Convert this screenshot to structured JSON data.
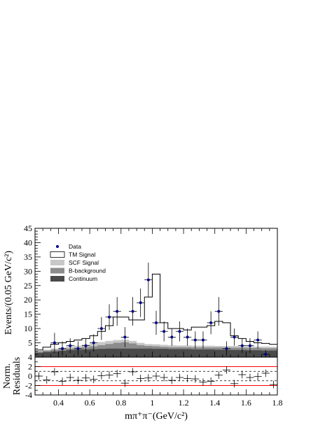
{
  "chart_data": [
    {
      "type": "histogram",
      "ylabel": "Events/(0.05 GeV/c²)",
      "xlim": [
        0.25,
        1.8
      ],
      "ylim": [
        0,
        45
      ],
      "y_ticks": [
        "5",
        "10",
        "15",
        "20",
        "25",
        "30",
        "35",
        "40",
        "45"
      ],
      "colors": {
        "data": "#00008b",
        "tm": "#000000",
        "scf": "#c8c8c8",
        "bkg": "#8c8c8c",
        "cont": "#4a4a4a"
      },
      "legend": {
        "placement": "top-left",
        "entries": [
          {
            "key": "data",
            "label": "Data"
          },
          {
            "key": "tm",
            "label": "TM Signal"
          },
          {
            "key": "scf",
            "label": "SCF Signal"
          },
          {
            "key": "bkg",
            "label": "B-background"
          },
          {
            "key": "cont",
            "label": "Continuum"
          }
        ]
      },
      "bin_edges": [
        0.25,
        0.3,
        0.35,
        0.4,
        0.45,
        0.5,
        0.55,
        0.6,
        0.65,
        0.7,
        0.75,
        0.8,
        0.85,
        0.9,
        0.95,
        1.0,
        1.05,
        1.1,
        1.15,
        1.2,
        1.25,
        1.3,
        1.35,
        1.4,
        1.45,
        1.5,
        1.55,
        1.6,
        1.65,
        1.7,
        1.75,
        1.8
      ],
      "series": [
        {
          "key": "cont",
          "name": "Continuum",
          "values": [
            1.5,
            1.8,
            2.0,
            2.2,
            2.5,
            2.6,
            2.7,
            2.8,
            2.9,
            3.0,
            3.0,
            3.0,
            3.0,
            3.0,
            3.0,
            2.9,
            2.9,
            2.8,
            2.8,
            2.8,
            2.7,
            2.7,
            2.7,
            2.6,
            2.6,
            2.5,
            2.5,
            2.4,
            2.4,
            2.3,
            2.3
          ]
        },
        {
          "key": "bkg",
          "name": "B-background",
          "values": [
            2.0,
            2.3,
            2.6,
            2.8,
            3.0,
            3.2,
            3.5,
            3.8,
            4.2,
            4.6,
            5.0,
            5.2,
            4.8,
            4.2,
            3.9,
            3.8,
            3.6,
            3.5,
            3.5,
            3.5,
            3.4,
            3.4,
            3.4,
            3.4,
            3.3,
            3.3,
            3.3,
            3.2,
            3.2,
            3.1,
            3.1
          ]
        },
        {
          "key": "scf",
          "name": "SCF Signal",
          "values": [
            2.2,
            2.6,
            3.0,
            3.3,
            3.7,
            4.0,
            4.4,
            4.8,
            5.3,
            5.7,
            6.0,
            6.1,
            5.7,
            5.0,
            4.6,
            4.5,
            4.3,
            4.2,
            4.1,
            4.1,
            4.0,
            4.0,
            4.0,
            3.9,
            3.9,
            3.9,
            3.8,
            3.8,
            3.7,
            3.7,
            3.6
          ]
        },
        {
          "key": "tm",
          "name": "TM Signal",
          "values": [
            2.5,
            3.5,
            4.5,
            5.0,
            5.5,
            6.0,
            6.5,
            7.5,
            9.0,
            11.0,
            14.0,
            14.0,
            13.0,
            13.0,
            21.0,
            29.0,
            12.0,
            10.0,
            10.0,
            9.5,
            10.5,
            10.5,
            11.0,
            12.5,
            12.0,
            7.5,
            6.5,
            5.5,
            5.0,
            4.8,
            4.5
          ]
        }
      ],
      "data_points": [
        {
          "x": 0.375,
          "y": 5,
          "err": 3.5
        },
        {
          "x": 0.425,
          "y": 3,
          "err": 2.5
        },
        {
          "x": 0.475,
          "y": 4,
          "err": 2.6
        },
        {
          "x": 0.525,
          "y": 3,
          "err": 2.5
        },
        {
          "x": 0.575,
          "y": 4,
          "err": 2.6
        },
        {
          "x": 0.625,
          "y": 5,
          "err": 3.0
        },
        {
          "x": 0.675,
          "y": 10,
          "err": 4.0
        },
        {
          "x": 0.725,
          "y": 14,
          "err": 4.5
        },
        {
          "x": 0.775,
          "y": 16,
          "err": 5.0
        },
        {
          "x": 0.825,
          "y": 7,
          "err": 3.5
        },
        {
          "x": 0.875,
          "y": 16,
          "err": 5.0
        },
        {
          "x": 0.925,
          "y": 19,
          "err": 5.0
        },
        {
          "x": 0.975,
          "y": 27,
          "err": 6.0
        },
        {
          "x": 1.025,
          "y": 12,
          "err": 4.2
        },
        {
          "x": 1.075,
          "y": 9,
          "err": 3.5
        },
        {
          "x": 1.125,
          "y": 7,
          "err": 3.0
        },
        {
          "x": 1.175,
          "y": 9,
          "err": 3.5
        },
        {
          "x": 1.225,
          "y": 7,
          "err": 3.0
        },
        {
          "x": 1.275,
          "y": 6,
          "err": 3.0
        },
        {
          "x": 1.325,
          "y": 6,
          "err": 3.0
        },
        {
          "x": 1.375,
          "y": 12,
          "err": 4.0
        },
        {
          "x": 1.425,
          "y": 16,
          "err": 5.0
        },
        {
          "x": 1.475,
          "y": 3,
          "err": 2.5
        },
        {
          "x": 1.525,
          "y": 7,
          "err": 3.0
        },
        {
          "x": 1.575,
          "y": 4,
          "err": 2.6
        },
        {
          "x": 1.625,
          "y": 4,
          "err": 2.6
        },
        {
          "x": 1.675,
          "y": 6,
          "err": 3.0
        },
        {
          "x": 1.725,
          "y": 1,
          "err": 1.5
        }
      ]
    },
    {
      "type": "scatter",
      "ylabel_lines": [
        "Norm.",
        "Residuals"
      ],
      "xlabel": "mπ⁺π⁻(GeV/c²)",
      "xlim": [
        0.25,
        1.8
      ],
      "ylim": [
        -4,
        4
      ],
      "x_ticks": [
        "0.4",
        "0.6",
        "0.8",
        "1",
        "1.2",
        "1.4",
        "1.6",
        "1.8"
      ],
      "y_ticks": [
        "-4",
        "-2",
        "0",
        "2",
        "4"
      ],
      "ref_lines": {
        "dashed": [
          -1,
          1
        ],
        "red": [
          -2,
          2
        ],
        "color": "#ff0000"
      },
      "points": [
        {
          "x": 0.275,
          "y": 0.0,
          "err": 0.8
        },
        {
          "x": 0.325,
          "y": -0.8,
          "err": 0.8
        },
        {
          "x": 0.375,
          "y": 0.9,
          "err": 0.8
        },
        {
          "x": 0.425,
          "y": -1.1,
          "err": 0.8
        },
        {
          "x": 0.475,
          "y": -0.3,
          "err": 0.8
        },
        {
          "x": 0.525,
          "y": -0.9,
          "err": 0.8
        },
        {
          "x": 0.575,
          "y": -0.4,
          "err": 0.8
        },
        {
          "x": 0.625,
          "y": -0.7,
          "err": 0.8
        },
        {
          "x": 0.675,
          "y": 0.1,
          "err": 0.8
        },
        {
          "x": 0.725,
          "y": 0.2,
          "err": 0.8
        },
        {
          "x": 0.775,
          "y": 0.5,
          "err": 0.8
        },
        {
          "x": 0.825,
          "y": -1.5,
          "err": 0.8
        },
        {
          "x": 0.875,
          "y": 0.9,
          "err": 0.8
        },
        {
          "x": 0.925,
          "y": -0.5,
          "err": 0.8
        },
        {
          "x": 0.975,
          "y": -0.4,
          "err": 0.8
        },
        {
          "x": 1.025,
          "y": 0.0,
          "err": 0.8
        },
        {
          "x": 1.075,
          "y": -0.3,
          "err": 0.8
        },
        {
          "x": 1.125,
          "y": -0.9,
          "err": 0.8
        },
        {
          "x": 1.175,
          "y": -0.3,
          "err": 0.8
        },
        {
          "x": 1.225,
          "y": -0.5,
          "err": 0.8
        },
        {
          "x": 1.275,
          "y": -0.6,
          "err": 0.8
        },
        {
          "x": 1.325,
          "y": -1.3,
          "err": 0.8
        },
        {
          "x": 1.375,
          "y": -1.1,
          "err": 0.8
        },
        {
          "x": 1.425,
          "y": 0.2,
          "err": 0.8
        },
        {
          "x": 1.475,
          "y": 1.3,
          "err": 0.8
        },
        {
          "x": 1.525,
          "y": -1.6,
          "err": 0.8
        },
        {
          "x": 1.575,
          "y": 0.3,
          "err": 0.8
        },
        {
          "x": 1.625,
          "y": -0.3,
          "err": 0.8
        },
        {
          "x": 1.675,
          "y": -0.1,
          "err": 0.8
        },
        {
          "x": 1.725,
          "y": 0.6,
          "err": 0.8
        },
        {
          "x": 1.775,
          "y": -1.8,
          "err": 0.8
        }
      ]
    }
  ]
}
